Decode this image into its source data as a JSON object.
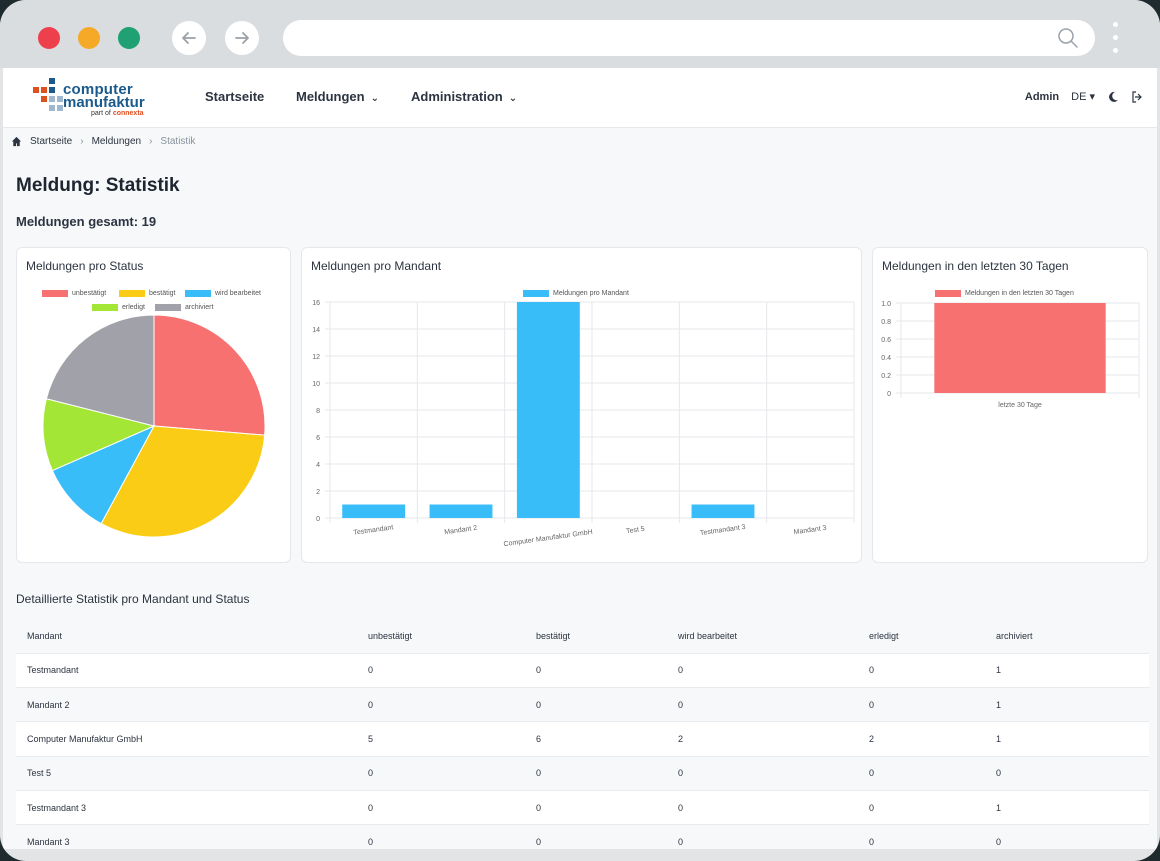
{
  "app": {
    "logo_line1": "computer",
    "logo_line2": "manufaktur",
    "logo_tag_prefix": "part of",
    "logo_tag_brand": "connexta"
  },
  "nav": {
    "home": "Startseite",
    "reports": "Meldungen",
    "admin": "Administration",
    "user": "Admin",
    "lang": "DE"
  },
  "breadcrumb": [
    "Startseite",
    "Meldungen",
    "Statistik"
  ],
  "page_title": "Meldung: Statistik",
  "total_label": "Meldungen gesamt: 19",
  "cards": {
    "status_title": "Meldungen pro Status",
    "mandant_title": "Meldungen pro Mandant",
    "last30_title": "Meldungen in den letzten 30 Tagen"
  },
  "colors": {
    "unbestaetigt": "#f87171",
    "bestaetigt": "#facc15",
    "wird_bearbeitet": "#38bdf8",
    "erledigt": "#a3e635",
    "archiviert": "#a1a1aa"
  },
  "chart_data": [
    {
      "type": "pie",
      "title": "Meldungen pro Status",
      "categories": [
        "unbestätigt",
        "bestätigt",
        "wird bearbeitet",
        "erledigt",
        "archiviert"
      ],
      "values": [
        5,
        6,
        2,
        2,
        4
      ],
      "colors": [
        "#f87171",
        "#facc15",
        "#38bdf8",
        "#a3e635",
        "#a1a1aa"
      ],
      "legend": "top"
    },
    {
      "type": "bar",
      "title": "Meldungen pro Mandant",
      "series": [
        {
          "name": "Meldungen pro Mandant",
          "values": [
            1,
            1,
            16,
            0,
            1,
            0
          ]
        }
      ],
      "categories": [
        "Testmandant",
        "Mandant 2",
        "Computer Manufaktur GmbH",
        "Test 5",
        "Testmandant 3",
        "Mandant 3"
      ],
      "yticks": [
        "0",
        "2",
        "4",
        "6",
        "8",
        "10",
        "12",
        "14",
        "16"
      ],
      "ylim": [
        0,
        16
      ],
      "color": "#38bdf8",
      "grid": true,
      "legend": "top"
    },
    {
      "type": "bar",
      "title": "Meldungen in den letzten 30 Tagen",
      "series": [
        {
          "name": "Meldungen in den letzten 30 Tagen",
          "values": [
            1
          ]
        }
      ],
      "categories": [
        "letzte 30 Tage"
      ],
      "yticks": [
        "0",
        "0.2",
        "0.4",
        "0.6",
        "0.8",
        "1.0"
      ],
      "ylim": [
        0,
        1
      ],
      "color": "#f87171",
      "grid": true,
      "legend": "top"
    }
  ],
  "table": {
    "title": "Detaillierte Statistik pro Mandant und Status",
    "headers": [
      "Mandant",
      "unbestätigt",
      "bestätigt",
      "wird bearbeitet",
      "erledigt",
      "archiviert"
    ],
    "rows": [
      [
        "Testmandant",
        "0",
        "0",
        "0",
        "0",
        "1"
      ],
      [
        "Mandant 2",
        "0",
        "0",
        "0",
        "0",
        "1"
      ],
      [
        "Computer Manufaktur GmbH",
        "5",
        "6",
        "2",
        "2",
        "1"
      ],
      [
        "Test 5",
        "0",
        "0",
        "0",
        "0",
        "0"
      ],
      [
        "Testmandant 3",
        "0",
        "0",
        "0",
        "0",
        "1"
      ],
      [
        "Mandant 3",
        "0",
        "0",
        "0",
        "0",
        "0"
      ]
    ]
  }
}
